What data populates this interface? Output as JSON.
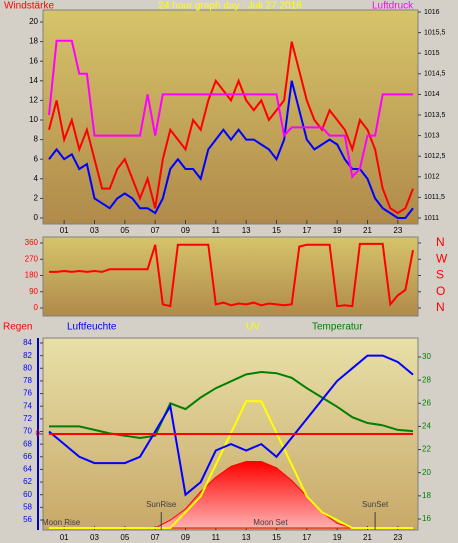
{
  "chart_data": [
    {
      "type": "line",
      "title": "24 hour graph day : Juli 27 2016",
      "xlim": [
        0,
        24
      ],
      "xticks": [
        {
          "value": 1,
          "label": "01"
        },
        {
          "value": 3,
          "label": "03"
        },
        {
          "value": 5,
          "label": "05"
        },
        {
          "value": 7,
          "label": "07"
        },
        {
          "value": 9,
          "label": "09"
        },
        {
          "value": 11,
          "label": "11"
        },
        {
          "value": 13,
          "label": "13"
        },
        {
          "value": 15,
          "label": "15"
        },
        {
          "value": 17,
          "label": "17"
        },
        {
          "value": 19,
          "label": "19"
        },
        {
          "value": 21,
          "label": "21"
        },
        {
          "value": 23,
          "label": "23"
        }
      ],
      "ylim": [
        0,
        20
      ],
      "yticks": [
        0,
        2,
        4,
        6,
        8,
        10,
        12,
        14,
        16,
        18,
        20
      ],
      "y2lim": [
        1011,
        1016
      ],
      "y2ticks": [
        1016,
        {
          "value": 1015.5,
          "label": "1015,5"
        },
        1015,
        {
          "value": 1014.5,
          "label": "1014,5"
        },
        1014,
        {
          "value": 1013.5,
          "label": "1013,5"
        },
        1013,
        {
          "value": 1012.5,
          "label": "1012,5"
        },
        1012,
        {
          "value": 1011.5,
          "label": "1011,5"
        },
        1011
      ],
      "x": [
        0,
        0.5,
        1,
        1.5,
        2,
        2.5,
        3,
        3.5,
        4,
        4.5,
        5,
        5.5,
        6,
        6.5,
        7,
        7.5,
        8,
        8.5,
        9,
        9.5,
        10,
        10.5,
        11,
        11.5,
        12,
        12.5,
        13,
        13.5,
        14,
        14.5,
        15,
        15.5,
        16,
        16.5,
        17,
        17.5,
        18,
        18.5,
        19,
        19.5,
        20,
        20.5,
        21,
        21.5,
        22,
        22.5,
        23,
        23.5,
        24
      ],
      "series": [
        {
          "name": "Windstärke",
          "color": "#ff0000",
          "axis": "y",
          "values": [
            9,
            12,
            8,
            10,
            7,
            9,
            6,
            3,
            3,
            5,
            6,
            4,
            2,
            4,
            1,
            6,
            9,
            8,
            7,
            10,
            9,
            12,
            14,
            13,
            12,
            14,
            12,
            11,
            12,
            10,
            11,
            12,
            18,
            15,
            12,
            10,
            9,
            11,
            10,
            9,
            7,
            10,
            9,
            7,
            3,
            1,
            0.5,
            1,
            3
          ]
        },
        {
          "color": "#0000ff",
          "axis": "y",
          "values": [
            6,
            7,
            6,
            6.5,
            5,
            5.5,
            2,
            1.5,
            1,
            2,
            2.5,
            2,
            1,
            1,
            0.5,
            2,
            5,
            6,
            5,
            5,
            4,
            7,
            8,
            9,
            8,
            9,
            8,
            8,
            7.5,
            7,
            6,
            8,
            14,
            11,
            8,
            7,
            7.5,
            8,
            7.5,
            6,
            5,
            5,
            4,
            2,
            1,
            0.5,
            0,
            0,
            1
          ]
        },
        {
          "name": "Luftdruck",
          "color": "#ff00ff",
          "axis": "y2",
          "values": [
            1013.5,
            1015.3,
            1015.3,
            1015.3,
            1014.5,
            1014.5,
            1013,
            1013,
            1013,
            1013,
            1013,
            1013,
            1013,
            1014,
            1013,
            1014,
            1014,
            1014,
            1014,
            1014,
            1014,
            1014,
            1014,
            1014,
            1014,
            1014,
            1014,
            1014,
            1014,
            1014,
            1014,
            1013,
            1013.2,
            1013.2,
            1013.2,
            1013.2,
            1013.2,
            1013,
            1013,
            1013,
            1012,
            1012.2,
            1013,
            1013,
            1014,
            1014,
            1014,
            1014,
            1014
          ]
        }
      ]
    },
    {
      "type": "line",
      "xlim": [
        0,
        24
      ],
      "ylim": [
        0,
        360
      ],
      "yticks": [
        0,
        90,
        180,
        270,
        360
      ],
      "y2lim": [
        0,
        360
      ],
      "y2ticks": [
        {
          "value": 360,
          "label": "N"
        },
        {
          "value": 270,
          "label": "W"
        },
        {
          "value": 180,
          "label": "S"
        },
        {
          "value": 90,
          "label": "O"
        },
        {
          "value": 0,
          "label": "N"
        }
      ],
      "x": [
        0,
        0.5,
        1,
        1.5,
        2,
        2.5,
        3,
        3.5,
        4,
        4.5,
        5,
        5.5,
        6,
        6.5,
        7,
        7.5,
        8,
        8.5,
        9,
        9.5,
        10,
        10.5,
        11,
        11.5,
        12,
        12.5,
        13,
        13.5,
        14,
        14.5,
        15,
        15.5,
        16,
        16.5,
        17,
        17.5,
        18,
        18.5,
        19,
        19.5,
        20,
        20.5,
        21,
        21.5,
        22,
        22.5,
        23,
        23.5,
        24
      ],
      "series": [
        {
          "color": "#ff0000",
          "axis": "y",
          "values": [
            200,
            200,
            205,
            200,
            205,
            200,
            205,
            200,
            215,
            215,
            215,
            215,
            215,
            215,
            350,
            20,
            10,
            350,
            350,
            350,
            350,
            350,
            20,
            30,
            15,
            25,
            20,
            30,
            15,
            25,
            20,
            15,
            20,
            340,
            350,
            350,
            350,
            350,
            10,
            15,
            10,
            355,
            355,
            355,
            355,
            20,
            70,
            100,
            320
          ]
        }
      ]
    },
    {
      "type": "line",
      "xlim": [
        0,
        24
      ],
      "xticks": [
        {
          "value": 1,
          "label": "01"
        },
        {
          "value": 3,
          "label": "03"
        },
        {
          "value": 5,
          "label": "05"
        },
        {
          "value": 7,
          "label": "07"
        },
        {
          "value": 9,
          "label": "09"
        },
        {
          "value": 11,
          "label": "11"
        },
        {
          "value": 13,
          "label": "13"
        },
        {
          "value": 15,
          "label": "15"
        },
        {
          "value": 17,
          "label": "17"
        },
        {
          "value": 19,
          "label": "19"
        },
        {
          "value": 21,
          "label": "21"
        },
        {
          "value": 23,
          "label": "23"
        }
      ],
      "ylim": [
        56,
        84
      ],
      "yticks": [
        56,
        58,
        60,
        62,
        64,
        66,
        68,
        70,
        72,
        74,
        76,
        78,
        80,
        82,
        84
      ],
      "y2lim": [
        16,
        30
      ],
      "y2ticks": [
        16,
        18,
        20,
        22,
        24,
        26,
        28,
        30
      ],
      "y3lim": [
        0,
        12
      ],
      "y4lim": [
        -5,
        5
      ],
      "y4ticks": [
        0
      ],
      "x": [
        0,
        1,
        2,
        3,
        4,
        5,
        6,
        7,
        8,
        9,
        10,
        11,
        12,
        13,
        14,
        15,
        16,
        17,
        18,
        19,
        20,
        21,
        22,
        23,
        24
      ],
      "series": [
        {
          "color": "#ff0000",
          "axis": "y3",
          "style": "area",
          "values": [
            0,
            0,
            0,
            0,
            0,
            0,
            0,
            0,
            0.5,
            1.2,
            2.3,
            3.2,
            3.9,
            4.2,
            4.2,
            3.8,
            3,
            2,
            1,
            0.3,
            0,
            0,
            0,
            0,
            0
          ]
        },
        {
          "name": "UV",
          "color": "#ffff00",
          "axis": "y3",
          "values": [
            0,
            0,
            0,
            0,
            0,
            0,
            0,
            0,
            0,
            1,
            2,
            4,
            6,
            8,
            8,
            6,
            4,
            2,
            1,
            0.5,
            0,
            0,
            0,
            0,
            0
          ]
        },
        {
          "name": "Temperatur",
          "color": "#008000",
          "axis": "y2",
          "values": [
            24,
            24,
            24,
            23.7,
            23.4,
            23.2,
            23,
            23.2,
            26,
            25.5,
            26.5,
            27.3,
            27.9,
            28.5,
            28.7,
            28.6,
            28.2,
            27.3,
            26.5,
            25.7,
            24.8,
            24.3,
            24.1,
            23.7,
            23.6
          ]
        },
        {
          "name": "Luftfeuchte",
          "color": "#0000ff",
          "axis": "y",
          "values": [
            70,
            68,
            66,
            65,
            65,
            65,
            66,
            70,
            74,
            60,
            62,
            67,
            68,
            67,
            68,
            66,
            69,
            72,
            75,
            78,
            80,
            82,
            82,
            81,
            79
          ]
        },
        {
          "name": "Regen",
          "color": "#ff0000",
          "axis": "y4",
          "values": [
            0,
            0,
            0,
            0,
            0,
            0,
            0,
            0,
            0,
            0,
            0,
            0,
            0,
            0,
            0,
            0,
            0,
            0,
            0,
            0,
            0,
            0,
            0,
            0,
            0
          ]
        }
      ],
      "annotations": [
        {
          "text": "SunRise",
          "x": 7.4
        },
        {
          "text": "SunSet",
          "x": 21.5
        },
        {
          "text": "Moon Rise",
          "x": 0.8
        },
        {
          "text": "Moon Set",
          "x": 14.6
        }
      ]
    }
  ]
}
